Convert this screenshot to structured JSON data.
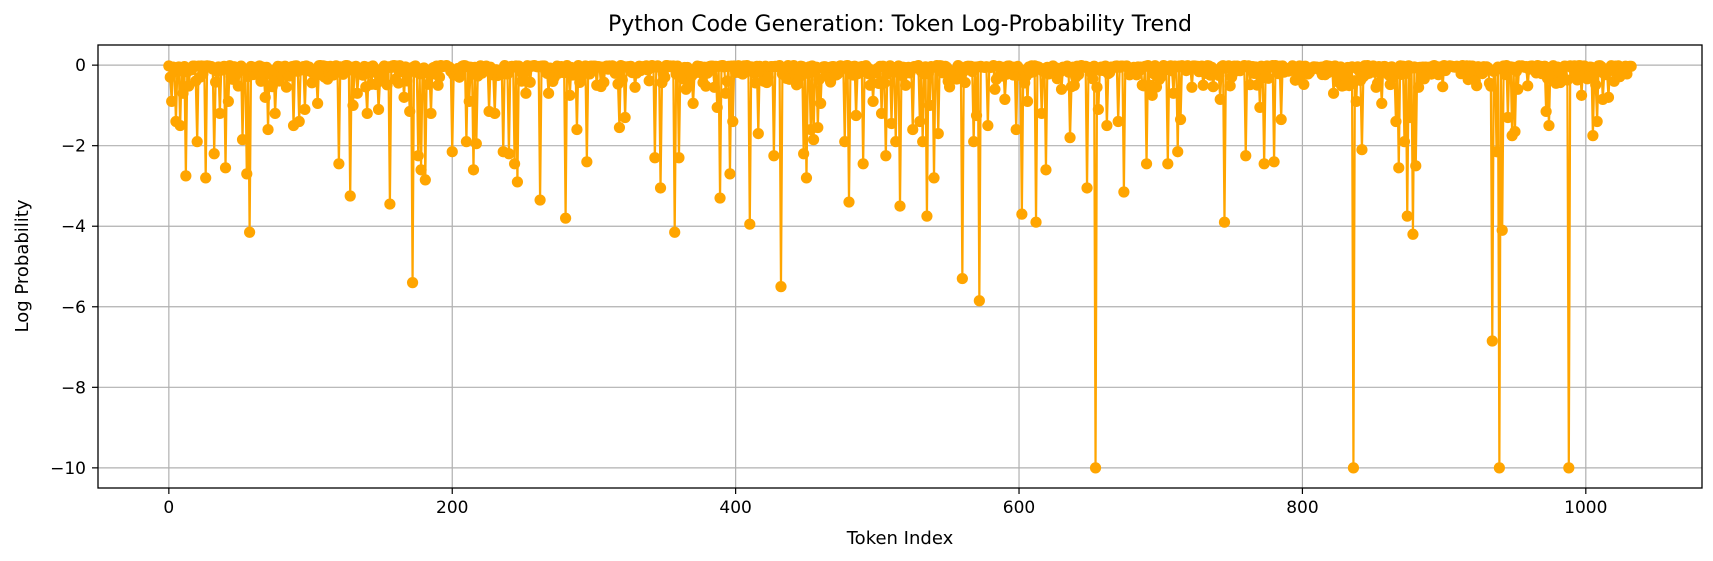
{
  "chart_data": {
    "type": "line",
    "title": "Python Code Generation: Token Log-Probability Trend",
    "xlabel": "Token Index",
    "ylabel": "Log Probability",
    "xlim": [
      -50,
      1082
    ],
    "ylim": [
      -10.5,
      0.5
    ],
    "xticks": [
      0,
      200,
      400,
      600,
      800,
      1000
    ],
    "yticks": [
      0,
      -2,
      -4,
      -6,
      -8,
      -10
    ],
    "grid": true,
    "marker": "circle",
    "color": "#FFA500",
    "n_tokens": 1033,
    "dips": [
      [
        2,
        -0.9
      ],
      [
        5,
        -1.4
      ],
      [
        8,
        -1.5
      ],
      [
        10,
        -0.7
      ],
      [
        12,
        -2.75
      ],
      [
        20,
        -1.9
      ],
      [
        26,
        -2.8
      ],
      [
        32,
        -2.2
      ],
      [
        36,
        -1.2
      ],
      [
        40,
        -2.55
      ],
      [
        42,
        -0.9
      ],
      [
        52,
        -1.85
      ],
      [
        55,
        -2.7
      ],
      [
        57,
        -4.15
      ],
      [
        65,
        -0.4
      ],
      [
        68,
        -0.8
      ],
      [
        70,
        -1.6
      ],
      [
        75,
        -1.2
      ],
      [
        88,
        -1.5
      ],
      [
        92,
        -1.4
      ],
      [
        96,
        -1.1
      ],
      [
        105,
        -0.95
      ],
      [
        120,
        -2.45
      ],
      [
        128,
        -3.25
      ],
      [
        130,
        -1.0
      ],
      [
        133,
        -0.7
      ],
      [
        140,
        -1.2
      ],
      [
        148,
        -1.1
      ],
      [
        156,
        -3.45
      ],
      [
        166,
        -0.8
      ],
      [
        170,
        -1.15
      ],
      [
        172,
        -5.4
      ],
      [
        176,
        -2.25
      ],
      [
        178,
        -2.6
      ],
      [
        181,
        -2.85
      ],
      [
        185,
        -1.2
      ],
      [
        200,
        -2.15
      ],
      [
        210,
        -1.9
      ],
      [
        212,
        -0.9
      ],
      [
        215,
        -2.6
      ],
      [
        217,
        -1.95
      ],
      [
        226,
        -1.15
      ],
      [
        230,
        -1.2
      ],
      [
        236,
        -2.15
      ],
      [
        240,
        -2.2
      ],
      [
        244,
        -2.45
      ],
      [
        246,
        -2.9
      ],
      [
        252,
        -0.7
      ],
      [
        262,
        -3.35
      ],
      [
        268,
        -0.7
      ],
      [
        280,
        -3.8
      ],
      [
        283,
        -0.75
      ],
      [
        288,
        -1.6
      ],
      [
        295,
        -2.4
      ],
      [
        302,
        -0.5
      ],
      [
        318,
        -1.55
      ],
      [
        322,
        -1.3
      ],
      [
        343,
        -2.3
      ],
      [
        347,
        -3.05
      ],
      [
        357,
        -4.15
      ],
      [
        360,
        -2.3
      ],
      [
        370,
        -0.95
      ],
      [
        385,
        -0.55
      ],
      [
        387,
        -1.05
      ],
      [
        389,
        -3.3
      ],
      [
        393,
        -0.7
      ],
      [
        396,
        -2.7
      ],
      [
        398,
        -1.4
      ],
      [
        410,
        -3.95
      ],
      [
        416,
        -1.7
      ],
      [
        423,
        -0.3
      ],
      [
        427,
        -2.25
      ],
      [
        432,
        -5.5
      ],
      [
        438,
        -0.35
      ],
      [
        448,
        -2.2
      ],
      [
        450,
        -2.8
      ],
      [
        453,
        -1.6
      ],
      [
        455,
        -1.85
      ],
      [
        458,
        -1.55
      ],
      [
        460,
        -0.95
      ],
      [
        477,
        -1.9
      ],
      [
        480,
        -3.4
      ],
      [
        485,
        -1.25
      ],
      [
        490,
        -2.45
      ],
      [
        497,
        -0.9
      ],
      [
        503,
        -1.2
      ],
      [
        506,
        -2.25
      ],
      [
        510,
        -1.45
      ],
      [
        513,
        -1.9
      ],
      [
        516,
        -3.5
      ],
      [
        525,
        -1.6
      ],
      [
        530,
        -1.4
      ],
      [
        532,
        -1.9
      ],
      [
        535,
        -3.75
      ],
      [
        537,
        -1.0
      ],
      [
        540,
        -2.8
      ],
      [
        543,
        -1.7
      ],
      [
        560,
        -5.3
      ],
      [
        568,
        -1.9
      ],
      [
        570,
        -1.25
      ],
      [
        572,
        -5.85
      ],
      [
        578,
        -1.5
      ],
      [
        583,
        -0.6
      ],
      [
        590,
        -0.85
      ],
      [
        598,
        -1.6
      ],
      [
        602,
        -3.7
      ],
      [
        606,
        -0.9
      ],
      [
        612,
        -3.9
      ],
      [
        616,
        -1.2
      ],
      [
        619,
        -2.6
      ],
      [
        630,
        -0.6
      ],
      [
        636,
        -1.8
      ],
      [
        648,
        -3.05
      ],
      [
        654,
        -10.0
      ],
      [
        656,
        -1.1
      ],
      [
        662,
        -1.5
      ],
      [
        670,
        -1.4
      ],
      [
        674,
        -3.15
      ],
      [
        690,
        -2.45
      ],
      [
        694,
        -0.75
      ],
      [
        705,
        -2.45
      ],
      [
        709,
        -0.7
      ],
      [
        712,
        -2.15
      ],
      [
        714,
        -1.35
      ],
      [
        722,
        -0.55
      ],
      [
        730,
        -0.5
      ],
      [
        742,
        -0.85
      ],
      [
        745,
        -3.9
      ],
      [
        760,
        -2.25
      ],
      [
        770,
        -1.05
      ],
      [
        773,
        -2.45
      ],
      [
        780,
        -2.4
      ],
      [
        785,
        -1.35
      ],
      [
        822,
        -0.7
      ],
      [
        830,
        -0.5
      ],
      [
        836,
        -10.0
      ],
      [
        838,
        -0.9
      ],
      [
        842,
        -2.1
      ],
      [
        852,
        -0.55
      ],
      [
        856,
        -0.95
      ],
      [
        866,
        -1.4
      ],
      [
        868,
        -2.55
      ],
      [
        872,
        -1.9
      ],
      [
        874,
        -3.75
      ],
      [
        876,
        -1.3
      ],
      [
        878,
        -4.2
      ],
      [
        880,
        -2.5
      ],
      [
        882,
        -0.55
      ],
      [
        932,
        -0.45
      ],
      [
        934,
        -6.85
      ],
      [
        937,
        -2.15
      ],
      [
        939,
        -10.0
      ],
      [
        941,
        -4.1
      ],
      [
        945,
        -1.3
      ],
      [
        948,
        -1.75
      ],
      [
        950,
        -1.65
      ],
      [
        952,
        -0.6
      ],
      [
        972,
        -1.15
      ],
      [
        974,
        -1.5
      ],
      [
        988,
        -10.0
      ],
      [
        997,
        -0.75
      ],
      [
        1005,
        -1.75
      ],
      [
        1008,
        -1.4
      ],
      [
        1012,
        -0.85
      ],
      [
        1016,
        -0.8
      ],
      [
        1020,
        -0.4
      ]
    ],
    "near_zero_points": [
      [
        0,
        -0.02
      ],
      [
        1,
        -0.3
      ],
      [
        15,
        -0.1
      ],
      [
        22,
        -0.3
      ],
      [
        45,
        -0.35
      ],
      [
        48,
        -0.2
      ],
      [
        80,
        -0.25
      ],
      [
        100,
        -0.15
      ],
      [
        110,
        -0.3
      ],
      [
        115,
        -0.1
      ],
      [
        160,
        -0.35
      ],
      [
        190,
        -0.5
      ],
      [
        205,
        -0.3
      ],
      [
        250,
        -0.25
      ],
      [
        275,
        -0.2
      ],
      [
        310,
        -0.1
      ],
      [
        330,
        -0.2
      ],
      [
        350,
        -0.3
      ],
      [
        365,
        -0.6
      ],
      [
        380,
        -0.2
      ],
      [
        420,
        -0.4
      ],
      [
        445,
        -0.3
      ],
      [
        470,
        -0.25
      ],
      [
        520,
        -0.5
      ],
      [
        550,
        -0.4
      ],
      [
        585,
        -0.3
      ],
      [
        625,
        -0.2
      ],
      [
        640,
        -0.3
      ],
      [
        680,
        -0.2
      ],
      [
        700,
        -0.3
      ],
      [
        735,
        -0.25
      ],
      [
        750,
        -0.3
      ],
      [
        790,
        -0.15
      ],
      [
        810,
        -0.05
      ],
      [
        825,
        -0.25
      ],
      [
        860,
        -0.2
      ],
      [
        890,
        -0.05
      ],
      [
        910,
        -0.05
      ],
      [
        925,
        -0.08
      ],
      [
        960,
        -0.1
      ],
      [
        980,
        -0.05
      ],
      [
        1000,
        -0.2
      ],
      [
        1025,
        -0.1
      ],
      [
        1030,
        -0.05
      ],
      [
        1032,
        -0.03
      ]
    ]
  }
}
